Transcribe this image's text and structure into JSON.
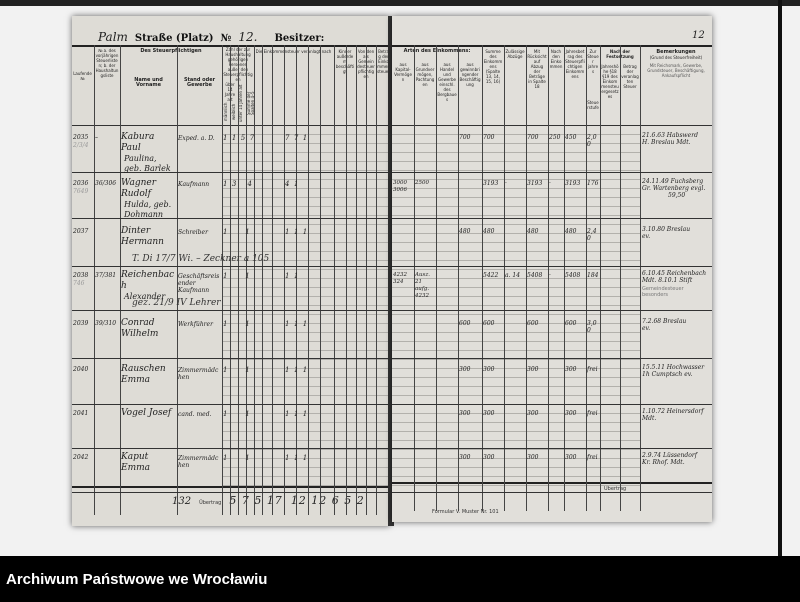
{
  "archive_label": "Archiwum Państwowe we Wrocławiu",
  "header": {
    "street_handwritten": "Palm",
    "street_label": "Straße (Platz)",
    "number_label": "№",
    "number_value": "12.",
    "owner_label": "Besitzer:",
    "page_number": "12"
  },
  "left_columns": {
    "c1": "Laufende №",
    "c1a": "№ a. des vorjährigen Steuerlisten; b. der Haushaltungsliste",
    "group_name": "Des Steuerpflichtigen",
    "c2": "Name und Vorname",
    "c3": "Stand oder Gewerbe",
    "group_persons": "Zahl der zur Haushaltung gehörigen Personen außer den Steuerpflichtigen",
    "c4": "über 14 Jahre alt",
    "c4a": "männlich",
    "c4b": "weiblich",
    "c5": "unter 14 Jahren alt",
    "c6": "Summe der Spalten 4–5",
    "group_income": "Die Einkommensteuer veranlagt nach",
    "group_dependents": "Kinder außerdem beschäftigt",
    "group_community": "Von den als Gemeindesteuer pflichtigen",
    "c_last": "Betrag der Einkommensteuer"
  },
  "right_columns": {
    "group_income": "Arten des Einkommens:",
    "c13": "aus Kapital-Vermögen",
    "c14": "aus Grundvermögen, Pachtungen",
    "c15": "aus Handel und Gewerbe einschl. des Bergbaues",
    "c16": "aus gewinnbringender Beschäftigung",
    "c17": "Summe des Einkommens (Spalte 13, 14, 15, 16)",
    "c18": "Zulässige Abzüge",
    "c19": "Mit Rücksicht auf Abzug der Beträge in Spalte 18",
    "c20": "Nach den Einkommen",
    "c21": "Jahresbetrag des Steuerpflichtigen Einkommens",
    "c22": "Zur Steuer jahres",
    "c23": "Steuerstufe",
    "group_assessment": "Nach der Festsetzung",
    "c24": "Jahreshöhe §18 §19 des Einkommensteuergesetzes",
    "c25": "Betrag der veranlagten Steuer",
    "remarks": "Bemerkungen",
    "remarks_sub": "(Grund des Steuerfreiheit)",
    "remarks_notes": "Mit Reichsmark, Gewerbe, Grundsteuer, Beschäftigung, Ankaufspflicht"
  },
  "rows": [
    {
      "no": "2035",
      "ref": "–",
      "ref_b": "2/3/4",
      "name": "Kabura Paul",
      "name2": "Paulina, geb. Barlek",
      "occupation": "Exped. a. D.",
      "persons": "1  1  5  7",
      "tax_cols": "7  7  1",
      "income_cap": "",
      "income_trade": "",
      "income_work": "700",
      "sum": "700",
      "deduct": "",
      "net": "700",
      "c20": "250",
      "c21": "450",
      "c22": "2,00",
      "rem1": "21.6.63 Habswerd",
      "rem2": "H. Breslau Mdt.",
      "note": ""
    },
    {
      "no": "2036",
      "ref": "36/306",
      "ref_b": "7649",
      "name": "Wagner Rudolf",
      "name2": "Hulda, geb. Dohmann",
      "occupation": "Kaufmann",
      "persons": "1  3     4",
      "tax_cols": "4  1",
      "income_cap": "3000 3006",
      "income_trade": "2500",
      "income_work": "",
      "sum": "3193",
      "deduct": "·",
      "net": "3193",
      "c20": "·",
      "c21": "3193",
      "c22": "176",
      "rem1": "24.11.49 Fuchsberg",
      "rem2": "Gr. Wartenberg evgl.",
      "rem3": "59,50",
      "note": ""
    },
    {
      "no": "2037",
      "ref": "",
      "ref_b": "",
      "name": "Dinter Hermann",
      "name2": "",
      "occupation": "Schreiber",
      "persons": "1        1",
      "tax_cols": "1  1  1",
      "income_cap": "",
      "income_trade": "",
      "income_work": "480",
      "sum": "480",
      "deduct": "",
      "net": "480",
      "c20": "",
      "c21": "480",
      "c22": "2,40",
      "rem1": "3.10.80 Breslau",
      "rem2": "ev.",
      "note": "T. Di 17/7 Wi. – Zeckner a 105"
    },
    {
      "no": "2038",
      "ref": "37/381",
      "ref_b": "746",
      "name": "Reichenbach",
      "name2": "Alexander",
      "occupation": "Geschäftsreisender Kaufmann",
      "persons": "1        1",
      "tax_cols": "1  1",
      "income_cap": "4232 324",
      "income_trade": "Ausz. 21 aufg. 4232",
      "income_work": "",
      "sum": "5422",
      "deduct": "a. 14",
      "net": "5408",
      "c20": "·",
      "c21": "5408",
      "c22": "184",
      "rem1": "6.10.45 Reichenbach",
      "rem2": "Mdt. 8.10.1 Stift",
      "note": "gez. 21/9 IV Lehrer",
      "stamp": "Gemeindesteuer besonders"
    },
    {
      "no": "2039",
      "ref": "39/310",
      "ref_b": "",
      "name": "Conrad Wilhelm",
      "name2": "",
      "occupation": "Werkführer",
      "persons": "1        1",
      "tax_cols": "1  1  1",
      "income_cap": "",
      "income_trade": "",
      "income_work": "600",
      "sum": "600",
      "deduct": "",
      "net": "600",
      "c20": "",
      "c21": "600",
      "c22": "3,00",
      "rem1": "7.2.68 Breslau",
      "rem2": "ev.",
      "note": ""
    },
    {
      "no": "2040",
      "ref": "",
      "ref_b": "",
      "name": "Rauschen Emma",
      "name2": "",
      "occupation": "Zimmermädchen",
      "persons": "1        1",
      "tax_cols": "1  1  1",
      "income_cap": "",
      "income_trade": "",
      "income_work": "300",
      "sum": "300",
      "deduct": "",
      "net": "300",
      "c20": "",
      "c21": "300",
      "c22": "frei",
      "rem1": "15.5.11 Hochwasser",
      "rem2": "1h Cumptsch ev.",
      "note": ""
    },
    {
      "no": "2041",
      "ref": "",
      "ref_b": "",
      "name": "Vogel Josef",
      "name2": "",
      "occupation": "cand. med.",
      "persons": "1        1",
      "tax_cols": "1  1  1",
      "income_cap": "",
      "income_trade": "",
      "income_work": "300",
      "sum": "300",
      "deduct": "",
      "net": "300",
      "c20": "",
      "c21": "300",
      "c22": "frei",
      "rem1": "1.10.72 Heinersdorf",
      "rem2": "Mdt.",
      "note": ""
    },
    {
      "no": "2042",
      "ref": "",
      "ref_b": "",
      "name": "Kaput Emma",
      "name2": "",
      "occupation": "Zimmermädchen",
      "persons": "1        1",
      "tax_cols": "1  1  1",
      "income_cap": "",
      "income_trade": "",
      "income_work": "300",
      "sum": "300",
      "deduct": "",
      "net": "300",
      "c20": "",
      "c21": "300",
      "c22": "frei",
      "rem1": "2.9.74 Lüssendorf",
      "rem2": "Kr. Rhof. Mdt.",
      "note": ""
    }
  ],
  "footer": {
    "left_total": "132",
    "carry_label": "Übertrag",
    "persons_totals": "5 7 5 17",
    "tax_totals": "12 12 6 5 2",
    "form_label": "Formular V. Muster Nr. 101",
    "right_carry_label": "Übertrag"
  }
}
